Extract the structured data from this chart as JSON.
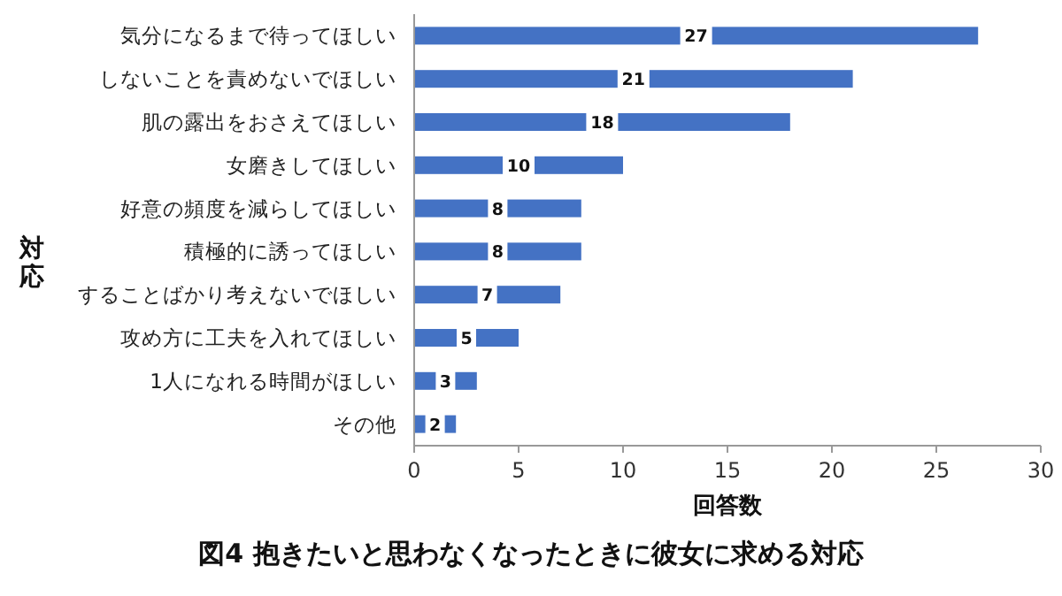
{
  "chart_data": {
    "type": "bar",
    "orientation": "horizontal",
    "title": "図4 抱きたいと思わなくなったときに彼女に求める対応",
    "xlabel": "回答数",
    "ylabel": "対応",
    "categories": [
      "気分になるまで待ってほしい",
      "しないことを責めないでほしい",
      "肌の露出をおさえてほしい",
      "女磨きしてほしい",
      "好意の頻度を減らしてほしい",
      "積極的に誘ってほしい",
      "することばかり考えないでほしい",
      "攻め方に工夫を入れてほしい",
      "1人になれる時間がほしい",
      "その他"
    ],
    "values": [
      27,
      21,
      18,
      10,
      8,
      8,
      7,
      5,
      3,
      2
    ],
    "color": "#4472c4",
    "xlim": [
      0,
      30
    ],
    "xticks": [
      0,
      5,
      10,
      15,
      20,
      25,
      30
    ],
    "data_labels": true,
    "grid": false
  }
}
